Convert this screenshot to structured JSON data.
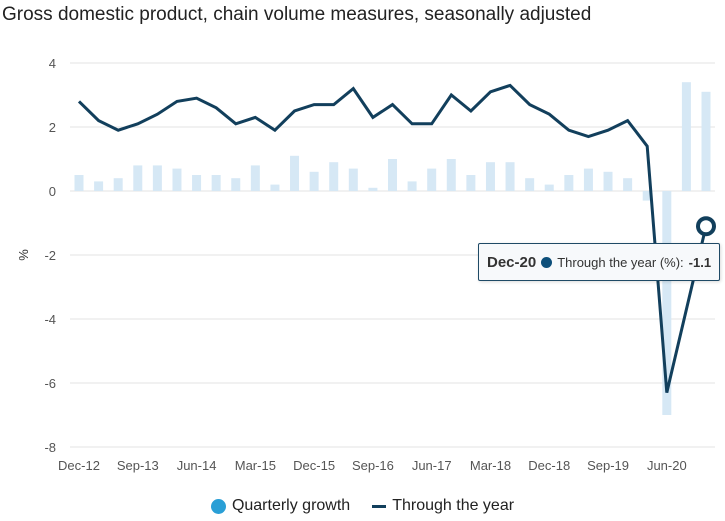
{
  "chart_data": {
    "type": "bar+line",
    "title": "Gross domestic product, chain volume measures, seasonally adjusted",
    "xlabel": "",
    "ylabel": "%",
    "ylim": [
      -8,
      4
    ],
    "yticks": [
      4,
      2,
      0,
      -2,
      -4,
      -6,
      -8
    ],
    "grid": true,
    "legend_position": "bottom-center",
    "x": [
      "Dec-12",
      "Mar-13",
      "Jun-13",
      "Sep-13",
      "Dec-13",
      "Mar-14",
      "Jun-14",
      "Sep-14",
      "Dec-14",
      "Mar-15",
      "Jun-15",
      "Sep-15",
      "Dec-15",
      "Mar-16",
      "Jun-16",
      "Sep-16",
      "Dec-16",
      "Mar-17",
      "Jun-17",
      "Sep-17",
      "Dec-17",
      "Mar-18",
      "Jun-18",
      "Sep-18",
      "Dec-18",
      "Mar-19",
      "Jun-19",
      "Sep-19",
      "Dec-19",
      "Mar-20",
      "Jun-20",
      "Sep-20",
      "Dec-20"
    ],
    "xtick_labels": [
      "Dec-12",
      "Sep-13",
      "Jun-14",
      "Mar-15",
      "Dec-15",
      "Sep-16",
      "Jun-17",
      "Mar-18",
      "Dec-18",
      "Sep-19",
      "Jun-20"
    ],
    "series": [
      {
        "name": "Quarterly growth",
        "type": "bar",
        "color": "#d6e8f5",
        "legend_color": "#2a9fd6",
        "values": [
          0.5,
          0.3,
          0.4,
          0.8,
          0.8,
          0.7,
          0.5,
          0.5,
          0.4,
          0.8,
          0.2,
          1.1,
          0.6,
          0.9,
          0.7,
          0.1,
          1.0,
          0.3,
          0.7,
          1.0,
          0.5,
          0.9,
          0.9,
          0.4,
          0.2,
          0.5,
          0.7,
          0.6,
          0.4,
          -0.3,
          -7.0,
          3.4,
          3.1
        ]
      },
      {
        "name": "Through the year",
        "type": "line",
        "color": "#123f5c",
        "values": [
          2.8,
          2.2,
          1.9,
          2.1,
          2.4,
          2.8,
          2.9,
          2.6,
          2.1,
          2.3,
          1.9,
          2.5,
          2.7,
          2.7,
          3.2,
          2.3,
          2.7,
          2.1,
          2.1,
          3.0,
          2.5,
          3.1,
          3.3,
          2.7,
          2.4,
          1.9,
          1.7,
          1.9,
          2.2,
          1.4,
          -6.3,
          -3.7,
          -1.1
        ]
      }
    ],
    "highlighted_point": {
      "series": "Through the year",
      "x": "Dec-20",
      "value": -1.1
    }
  },
  "tooltip": {
    "date": "Dec-20",
    "label": "Through the year (%):",
    "value": "-1.1",
    "dot_color": "#0d4f7a"
  },
  "legend": {
    "items": [
      {
        "label": "Quarterly growth",
        "icon": "circle"
      },
      {
        "label": "Through the year",
        "icon": "line"
      }
    ]
  },
  "colors": {
    "bar": "#d6e8f5",
    "line": "#123f5c",
    "grid": "#e3e3e3"
  }
}
